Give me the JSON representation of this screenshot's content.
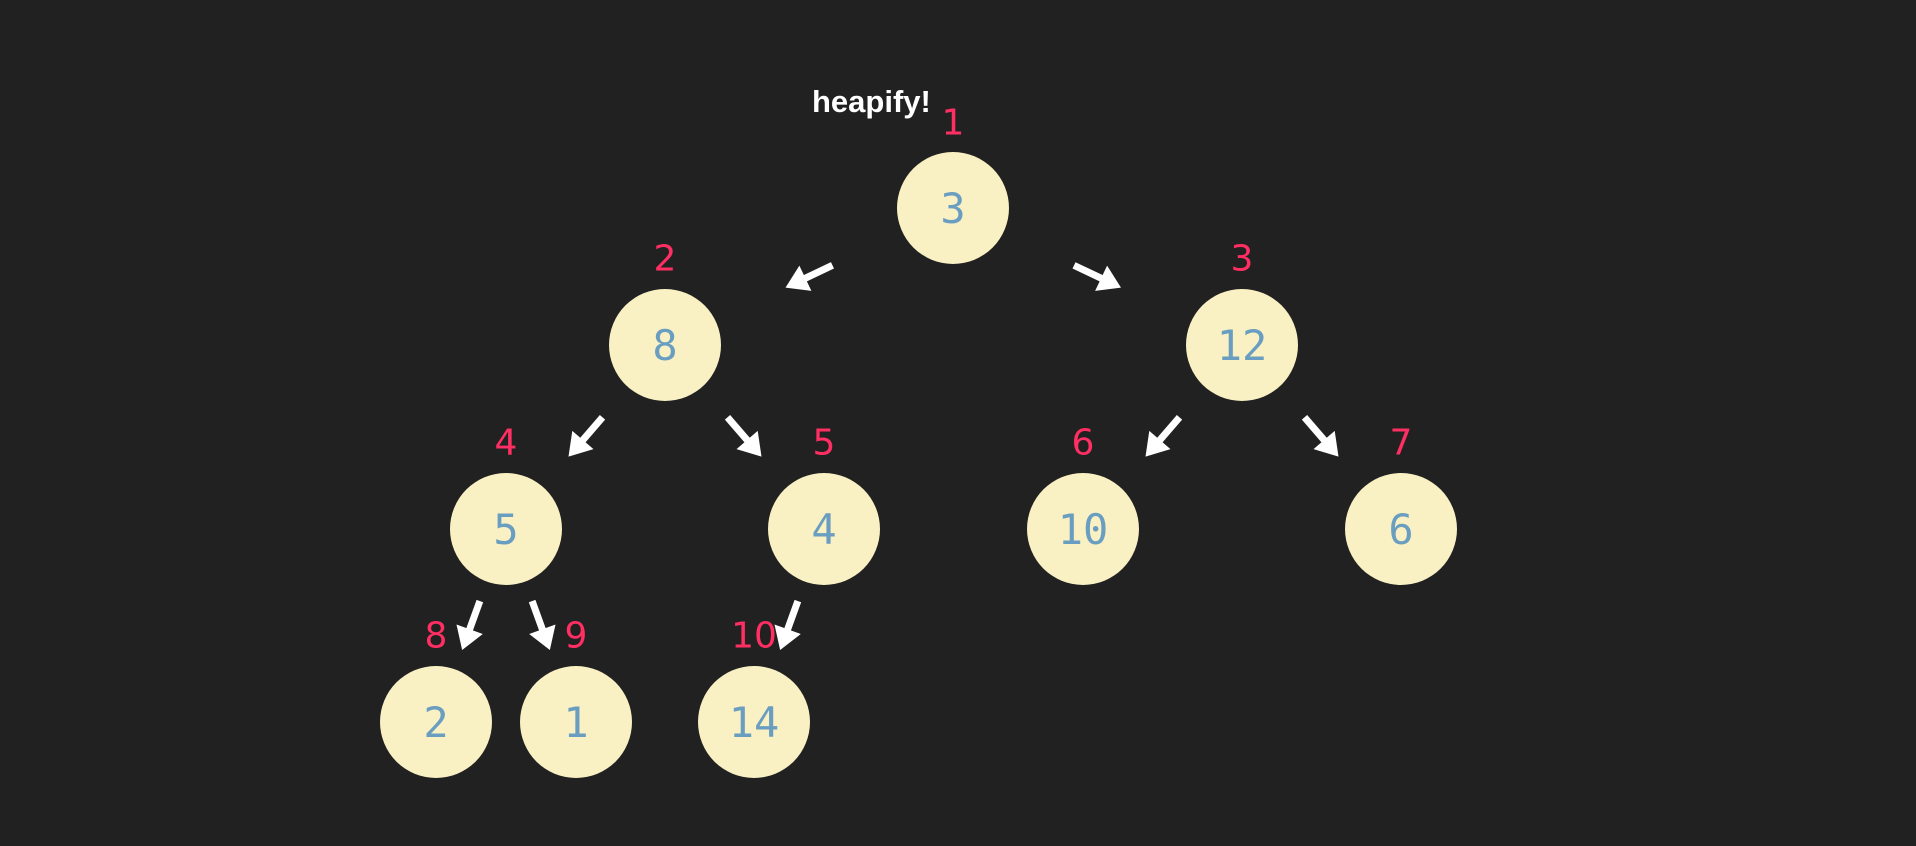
{
  "caption": "heapify!",
  "colors": {
    "background": "#212121",
    "node_fill": "#f9f0c4",
    "node_value": "#6a9ec0",
    "index_label": "#ff2e63",
    "arrow": "#ffffff",
    "caption": "#ffffff"
  },
  "nodes": [
    {
      "index": "1",
      "value": "3"
    },
    {
      "index": "2",
      "value": "8"
    },
    {
      "index": "3",
      "value": "12"
    },
    {
      "index": "4",
      "value": "5"
    },
    {
      "index": "5",
      "value": "4"
    },
    {
      "index": "6",
      "value": "10"
    },
    {
      "index": "7",
      "value": "6"
    },
    {
      "index": "8",
      "value": "2"
    },
    {
      "index": "9",
      "value": "1"
    },
    {
      "index": "10",
      "value": "14"
    }
  ],
  "edges": [
    {
      "from": "1",
      "to": "2"
    },
    {
      "from": "1",
      "to": "3"
    },
    {
      "from": "2",
      "to": "4"
    },
    {
      "from": "2",
      "to": "5"
    },
    {
      "from": "3",
      "to": "6"
    },
    {
      "from": "3",
      "to": "7"
    },
    {
      "from": "4",
      "to": "8"
    },
    {
      "from": "4",
      "to": "9"
    },
    {
      "from": "5",
      "to": "10"
    }
  ]
}
